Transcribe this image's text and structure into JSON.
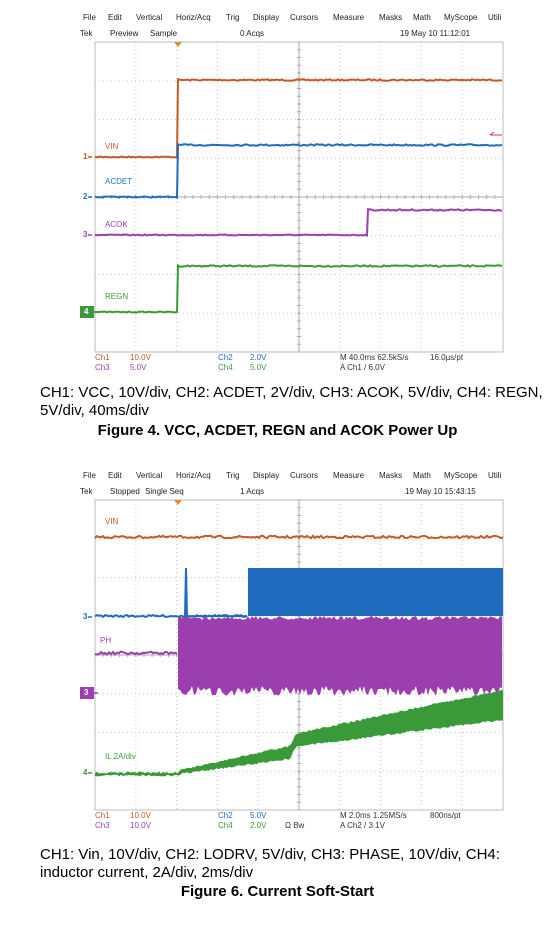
{
  "figures": [
    {
      "menu": [
        "File",
        "Edit",
        "Vertical",
        "Horiz/Acq",
        "Trig",
        "Display",
        "Cursors",
        "Measure",
        "Masks",
        "Math",
        "MyScope",
        "Utili"
      ],
      "status": [
        "Tek",
        "Preview",
        "Sample",
        "0 Acqs",
        "19 May 10 11:12:01"
      ],
      "labels": [
        "VIN",
        "ACDET",
        "ACOK",
        "REGN"
      ],
      "markers": [
        "1",
        "2",
        "3",
        "4"
      ],
      "readout": [
        [
          "Ch1",
          "10.0V",
          "Ch2",
          "2.0V",
          "M 40.0ms 62.5kS/s",
          "16.0µs/pt"
        ],
        [
          "Ch3",
          "5.0V",
          "Ch4",
          "5.0V",
          "A Ch1 / 6.0V"
        ]
      ],
      "caption": "CH1: VCC, 10V/div, CH2: ACDET, 2V/div, CH3: ACOK, 5V/div, CH4: REGN, 5V/div, 40ms/div",
      "title": "Figure 4. VCC, ACDET, REGN and ACOK Power Up"
    },
    {
      "menu": [
        "File",
        "Edit",
        "Vertical",
        "Horiz/Acq",
        "Trig",
        "Display",
        "Cursors",
        "Measure",
        "Masks",
        "Math",
        "MyScope",
        "Utili"
      ],
      "status": [
        "Tek",
        "Stopped",
        "Single Seq",
        "1 Acqs",
        "19 May 10 15:43:15"
      ],
      "labels": [
        "VIN",
        "PH",
        "IL 2A/div"
      ],
      "markers": [
        "3",
        "3",
        "4"
      ],
      "readout": [
        [
          "Ch1",
          "10.0V",
          "Ch2",
          "5.0V",
          "M 2.0ms 1.25MS/s",
          "800ns/pt"
        ],
        [
          "Ch3",
          "10.0V",
          "Ch4",
          "2.0V",
          "Ω Bw",
          "A Ch2 / 3.1V"
        ]
      ],
      "caption": "CH1: Vin, 10V/div, CH2: LODRV, 5V/div, CH3: PHASE, 10V/div, CH4: inductor current, 2A/div, 2ms/div",
      "title": "Figure 6. Current Soft-Start"
    }
  ]
}
